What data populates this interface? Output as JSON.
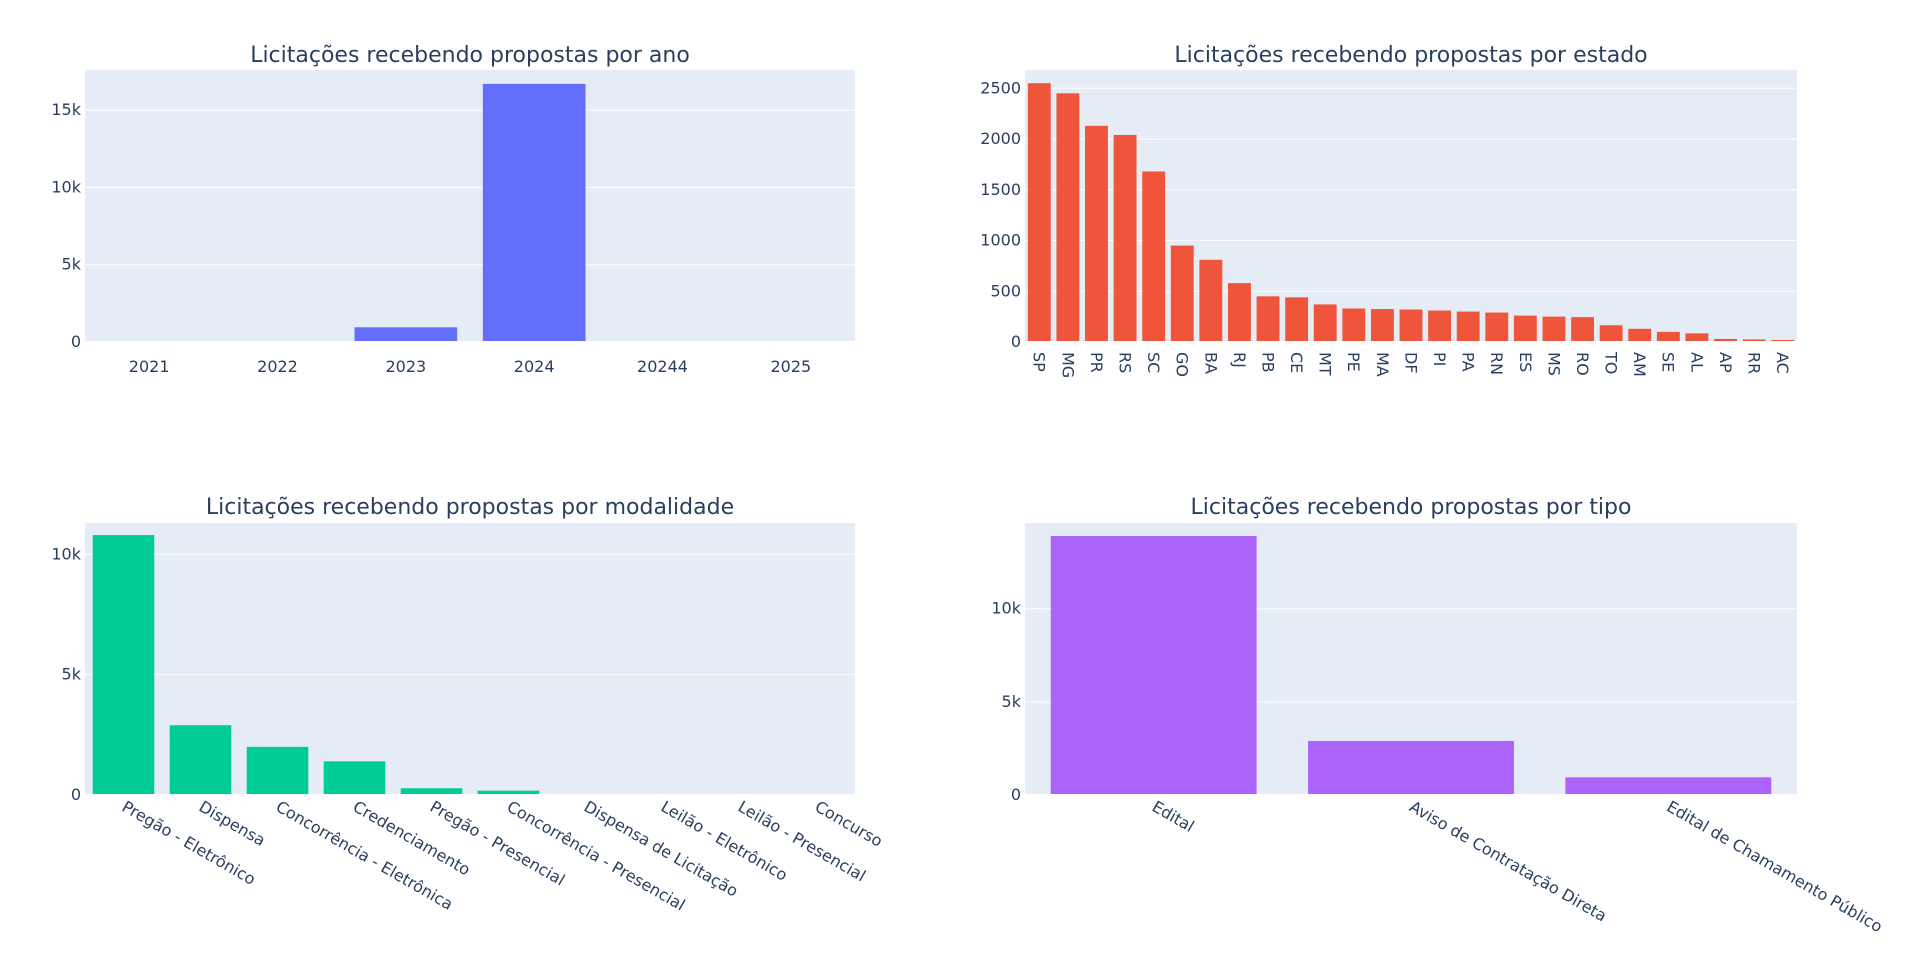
{
  "chart_data": [
    {
      "type": "bar",
      "title": "Licitações recebendo propostas por ano",
      "categories": [
        "2021",
        "2022",
        "2023",
        "2024",
        "20244",
        "2025"
      ],
      "values": [
        10,
        10,
        950,
        16700,
        5,
        60
      ],
      "ylim": [
        0,
        17600
      ],
      "yticks": [
        0,
        5000,
        10000,
        15000
      ],
      "ytick_labels": [
        "0",
        "5k",
        "10k",
        "15k"
      ],
      "color": "#636efa",
      "xtick_angle": 0,
      "grid": true
    },
    {
      "type": "bar",
      "title": "Licitações recebendo propostas por estado",
      "categories": [
        "SP",
        "MG",
        "PR",
        "RS",
        "SC",
        "GO",
        "BA",
        "RJ",
        "PB",
        "CE",
        "MT",
        "PE",
        "MA",
        "DF",
        "PI",
        "PA",
        "RN",
        "ES",
        "MS",
        "RO",
        "TO",
        "AM",
        "SE",
        "AL",
        "AP",
        "RR",
        "AC"
      ],
      "values": [
        2550,
        2450,
        2130,
        2040,
        1680,
        950,
        810,
        580,
        450,
        440,
        370,
        330,
        325,
        320,
        310,
        300,
        290,
        260,
        250,
        245,
        165,
        130,
        100,
        85,
        30,
        25,
        20
      ],
      "ylim": [
        0,
        2680
      ],
      "yticks": [
        0,
        500,
        1000,
        1500,
        2000,
        2500
      ],
      "ytick_labels": [
        "0",
        "500",
        "1000",
        "1500",
        "2000",
        "2500"
      ],
      "color": "#ef553b",
      "xtick_angle": 90,
      "grid": true
    },
    {
      "type": "bar",
      "title": "Licitações recebendo propostas por modalidade",
      "categories": [
        "Pregão - Eletrônico",
        "Dispensa",
        "Concorrência - Eletrônica",
        "Credenciamento",
        "Pregão - Presencial",
        "Concorrência - Presencial",
        "Dispensa de Licitação",
        "Leilão - Eletrônico",
        "Leilão - Presencial",
        "Concurso"
      ],
      "values": [
        10800,
        2900,
        2000,
        1400,
        280,
        180,
        40,
        20,
        10,
        5
      ],
      "ylim": [
        0,
        11300
      ],
      "yticks": [
        0,
        5000,
        10000
      ],
      "ytick_labels": [
        "0",
        "5k",
        "10k"
      ],
      "color": "#00cc96",
      "xtick_angle": 30,
      "grid": true
    },
    {
      "type": "bar",
      "title": "Licitações recebendo propostas por tipo",
      "categories": [
        "Edital",
        "Aviso de Contratação Direta",
        "Edital de Chamamento Público"
      ],
      "values": [
        13900,
        2900,
        950
      ],
      "ylim": [
        0,
        14600
      ],
      "yticks": [
        0,
        5000,
        10000
      ],
      "ytick_labels": [
        "0",
        "5k",
        "10k"
      ],
      "color": "#ab63fa",
      "xtick_angle": 30,
      "grid": true
    }
  ]
}
